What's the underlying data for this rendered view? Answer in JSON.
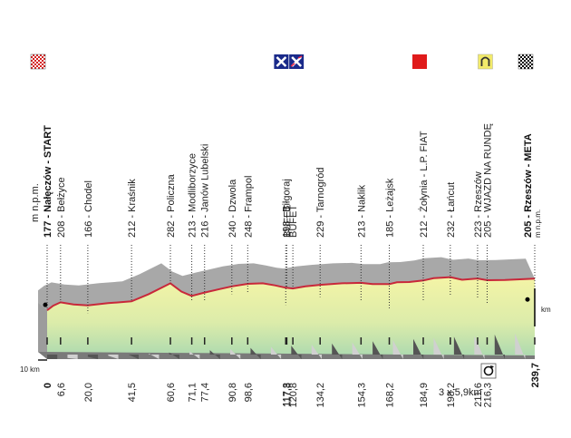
{
  "chart_data": {
    "type": "area",
    "altitude_unit": "m n.p.m.",
    "distance_unit": "km",
    "scale_label": "10 km",
    "circuit_note": "3 x 5,9km",
    "start_label": "Nałęczów - START",
    "finish_label": "Rzeszów - META",
    "start_altitude": "177",
    "finish_altitude": "205",
    "points": [
      {
        "km": 0,
        "km_label": "0",
        "alt": 177,
        "name": "Nałęczów - START",
        "alt_label": "177"
      },
      {
        "km": 6.6,
        "km_label": "6,6",
        "alt": 208,
        "name": "Bełżyce",
        "alt_label": "208"
      },
      {
        "km": 20.0,
        "km_label": "20,0",
        "alt": 166,
        "name": "Chodel",
        "alt_label": "166"
      },
      {
        "km": 41.5,
        "km_label": "41,5",
        "alt": 212,
        "name": "Kraśnik",
        "alt_label": "212"
      },
      {
        "km": 60.6,
        "km_label": "60,6",
        "alt": 282,
        "name": "Policzna",
        "alt_label": "282"
      },
      {
        "km": 71.1,
        "km_label": "71,1",
        "alt": 213,
        "name": "Modliborzyce",
        "alt_label": "213"
      },
      {
        "km": 77.4,
        "km_label": "77,4",
        "alt": 216,
        "name": "Janów Lubelski",
        "alt_label": "216"
      },
      {
        "km": 90.8,
        "km_label": "90,8",
        "alt": 240,
        "name": "Dzwola",
        "alt_label": "240"
      },
      {
        "km": 98.6,
        "km_label": "98,6",
        "alt": 248,
        "name": "Frampol",
        "alt_label": "248"
      },
      {
        "km": 117.3,
        "km_label": "117,3",
        "alt": 198,
        "name": "Biłgoraj",
        "alt_label": "198"
      },
      {
        "km": 117.8,
        "km_label": "117,8",
        "alt": null,
        "name": "BUFET",
        "alt_label": ""
      },
      {
        "km": 120.8,
        "km_label": "120,8",
        "alt": null,
        "name": "BUFET",
        "alt_label": ""
      },
      {
        "km": 134.2,
        "km_label": "134,2",
        "alt": 229,
        "name": "Tarnogród",
        "alt_label": "229"
      },
      {
        "km": 154.3,
        "km_label": "154,3",
        "alt": 213,
        "name": "Naklik",
        "alt_label": "213"
      },
      {
        "km": 168.2,
        "km_label": "168,2",
        "alt": 185,
        "name": "Leżajsk",
        "alt_label": "185"
      },
      {
        "km": 184.9,
        "km_label": "184,9",
        "alt": 212,
        "name": "Żołynia - L.P. FIAT",
        "alt_label": "212"
      },
      {
        "km": 198.2,
        "km_label": "198,2",
        "alt": 232,
        "name": "Łańcut",
        "alt_label": "232"
      },
      {
        "km": 211.6,
        "km_label": "211,6",
        "alt": 223,
        "name": "Rzeszów",
        "alt_label": "223"
      },
      {
        "km": 216.3,
        "km_label": "216,3",
        "alt": 205,
        "name": "WJAZD NA RUNDĘ",
        "alt_label": "205"
      },
      {
        "km": 239.7,
        "km_label": "239,7",
        "alt": 205,
        "name": "Rzeszów - META",
        "alt_label": "205"
      }
    ],
    "icons": [
      {
        "name": "start-flag-icon",
        "color": "#d42020"
      },
      {
        "name": "feed-zone-icon-1",
        "color": "#1a2a8a"
      },
      {
        "name": "feed-zone-icon-2",
        "color": "#1a2a8a"
      },
      {
        "name": "sprint-flag-icon",
        "color": "#e01b1b"
      },
      {
        "name": "circuit-entry-icon",
        "color": "#f2ea6a"
      },
      {
        "name": "finish-flag-icon",
        "color": "#000000"
      }
    ],
    "colors": {
      "profile_top": "#f2f2a8",
      "profile_bottom": "#b5ddb3",
      "route_line": "#c8283a",
      "shadow": "#a8a8a8",
      "base": "#777777"
    }
  }
}
